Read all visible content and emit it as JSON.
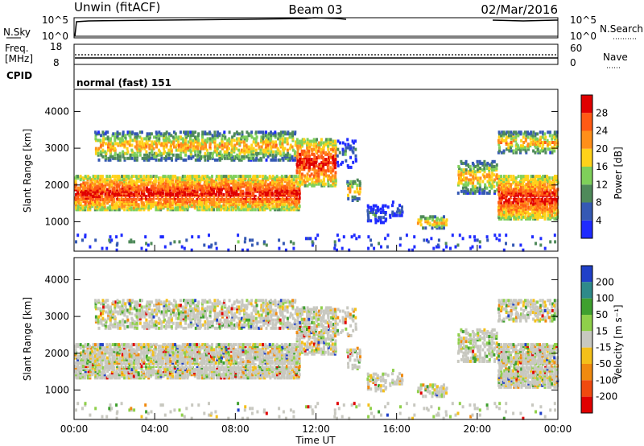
{
  "header": {
    "radar": "Unwin (fitACF)",
    "beam": "Beam 03",
    "date": "02/Mar/2016"
  },
  "nsky": {
    "label": "N.Sky",
    "ticks_left": [
      "10^5",
      "10^0"
    ],
    "ticks_right": [
      "10^5",
      "10^0"
    ],
    "right_label": "N.Search"
  },
  "freq": {
    "label_top": "Freq.",
    "label_unit": "[MHz]",
    "ticks_left": [
      "18",
      "8"
    ],
    "ticks_right": [
      "60",
      "0"
    ],
    "right_label": "Nave"
  },
  "cpid": {
    "label": "CPID",
    "text": "normal (fast) 151"
  },
  "chart_data": [
    {
      "type": "heatmap",
      "title": "",
      "quantity": "Power",
      "ylabel": "Slant Range [km]",
      "yticks": [
        "1000",
        "2000",
        "3000",
        "4000"
      ],
      "ylim": [
        200,
        4600
      ],
      "colorbar": {
        "label": "Power [dB]",
        "ticks": [
          "4",
          "8",
          "12",
          "16",
          "20",
          "24",
          "28"
        ],
        "colors": [
          "#1f2bff",
          "#3559b4",
          "#4f8a5a",
          "#7fd05a",
          "#ffd21a",
          "#ff8f1a",
          "#ff5a14",
          "#e00000"
        ]
      }
    },
    {
      "type": "heatmap",
      "title": "",
      "quantity": "Velocity",
      "ylabel": "Slant Range [km]",
      "yticks": [
        "1000",
        "2000",
        "3000",
        "4000"
      ],
      "ylim": [
        200,
        4600
      ],
      "xlabel": "Time UT",
      "xticks": [
        "00:00",
        "04:00",
        "08:00",
        "12:00",
        "16:00",
        "20:00",
        "00:00"
      ],
      "colorbar": {
        "label": "Velocity [m s⁻¹]",
        "ticks": [
          "200",
          "100",
          "50",
          "15",
          "-15",
          "-50",
          "-100",
          "-200"
        ],
        "colors": [
          "#2040c8",
          "#2f8a8a",
          "#3fa02f",
          "#8fd04a",
          "#c8c8c0",
          "#f4c01a",
          "#f08a10",
          "#f04a10",
          "#e00000"
        ]
      }
    }
  ]
}
